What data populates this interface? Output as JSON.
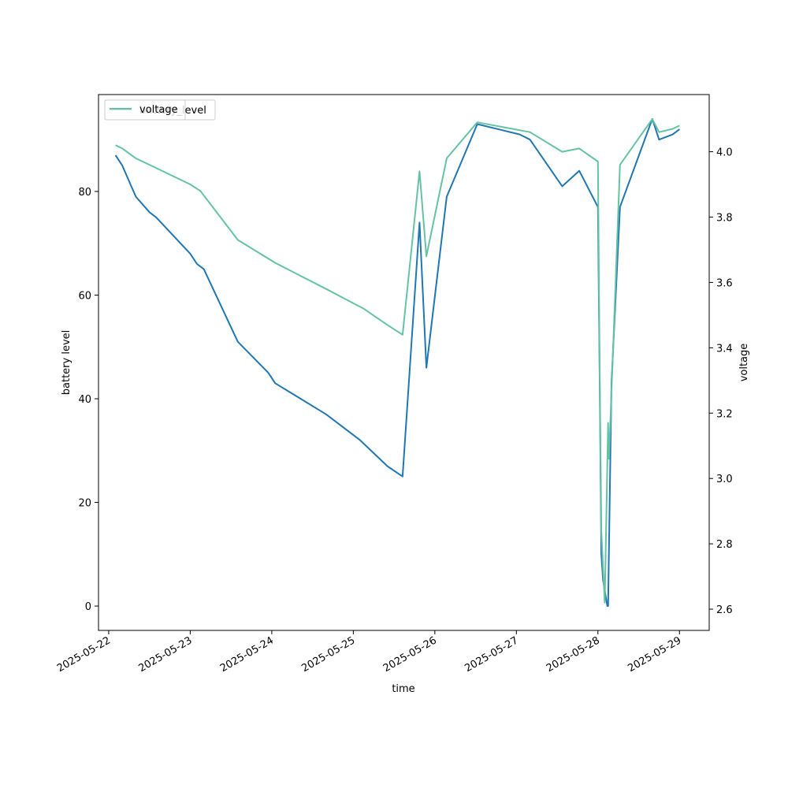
{
  "chart_data": {
    "type": "line",
    "xlabel": "time",
    "ylabel_left": "battery level",
    "ylabel_right": "voltage",
    "x_ticks": [
      "2025-05-22",
      "2025-05-23",
      "2025-05-24",
      "2025-05-25",
      "2025-05-26",
      "2025-05-27",
      "2025-05-28",
      "2025-05-29"
    ],
    "y_left_ticks": [
      0,
      20,
      40,
      60,
      80
    ],
    "y_right_ticks": [
      2.6,
      2.8,
      3.0,
      3.2,
      3.4,
      3.6,
      3.8,
      4.0
    ],
    "y_left_range": [
      -4.7,
      98.7
    ],
    "y_right_range": [
      2.535,
      4.175
    ],
    "x_range": [
      "2025-05-21 21:00",
      "2025-05-29 08:45"
    ],
    "grid": false,
    "legend": {
      "placement": "upper left",
      "entries_overlapping": [
        "battery_level",
        "voltage"
      ]
    },
    "colors": {
      "battery_level": "#1f77b4",
      "voltage": "#66c2a5"
    },
    "series": [
      {
        "name": "battery_level",
        "axis": "left",
        "points": [
          [
            "2025-05-22 02:00",
            87
          ],
          [
            "2025-05-22 04:00",
            85
          ],
          [
            "2025-05-22 08:00",
            79
          ],
          [
            "2025-05-22 12:00",
            76
          ],
          [
            "2025-05-22 14:00",
            75
          ],
          [
            "2025-05-23 00:00",
            68
          ],
          [
            "2025-05-23 02:00",
            66
          ],
          [
            "2025-05-23 04:00",
            65
          ],
          [
            "2025-05-23 14:00",
            51
          ],
          [
            "2025-05-23 17:00",
            49
          ],
          [
            "2025-05-23 23:00",
            45
          ],
          [
            "2025-05-24 01:00",
            43
          ],
          [
            "2025-05-24 06:00",
            41
          ],
          [
            "2025-05-24 16:00",
            37
          ],
          [
            "2025-05-25 02:00",
            32
          ],
          [
            "2025-05-25 10:00",
            27
          ],
          [
            "2025-05-25 14:30",
            25
          ],
          [
            "2025-05-25 19:30",
            74
          ],
          [
            "2025-05-25 21:30",
            46
          ],
          [
            "2025-05-26 03:30",
            79
          ],
          [
            "2025-05-26 12:30",
            93
          ],
          [
            "2025-05-27 01:00",
            91
          ],
          [
            "2025-05-27 04:00",
            90
          ],
          [
            "2025-05-27 13:30",
            81
          ],
          [
            "2025-05-27 18:30",
            84
          ],
          [
            "2025-05-28 00:00",
            77
          ],
          [
            "2025-05-28 00:30",
            44
          ],
          [
            "2025-05-28 01:00",
            10
          ],
          [
            "2025-05-28 01:30",
            5
          ],
          [
            "2025-05-28 02:45",
            0
          ],
          [
            "2025-05-28 03:00",
            0
          ],
          [
            "2025-05-28 04:00",
            43
          ],
          [
            "2025-05-28 06:30",
            77
          ],
          [
            "2025-05-28 16:00",
            94
          ],
          [
            "2025-05-28 18:00",
            90
          ],
          [
            "2025-05-28 22:00",
            91
          ],
          [
            "2025-05-29 00:00",
            92
          ]
        ]
      },
      {
        "name": "voltage",
        "axis": "right",
        "points": [
          [
            "2025-05-22 02:00",
            4.02
          ],
          [
            "2025-05-22 04:00",
            4.01
          ],
          [
            "2025-05-22 08:00",
            3.98
          ],
          [
            "2025-05-22 12:00",
            3.96
          ],
          [
            "2025-05-23 00:00",
            3.9
          ],
          [
            "2025-05-23 03:00",
            3.88
          ],
          [
            "2025-05-23 14:00",
            3.73
          ],
          [
            "2025-05-24 01:00",
            3.66
          ],
          [
            "2025-05-24 16:00",
            3.58
          ],
          [
            "2025-05-25 03:00",
            3.52
          ],
          [
            "2025-05-25 10:00",
            3.47
          ],
          [
            "2025-05-25 14:30",
            3.44
          ],
          [
            "2025-05-25 19:30",
            3.94
          ],
          [
            "2025-05-25 21:30",
            3.68
          ],
          [
            "2025-05-26 03:30",
            3.98
          ],
          [
            "2025-05-26 12:30",
            4.09
          ],
          [
            "2025-05-27 04:00",
            4.06
          ],
          [
            "2025-05-27 13:30",
            4.0
          ],
          [
            "2025-05-27 18:30",
            4.01
          ],
          [
            "2025-05-28 00:00",
            3.97
          ],
          [
            "2025-05-28 00:30",
            3.33
          ],
          [
            "2025-05-28 01:00",
            2.84
          ],
          [
            "2025-05-28 02:00",
            2.62
          ],
          [
            "2025-05-28 03:00",
            3.17
          ],
          [
            "2025-05-28 03:15",
            3.06
          ],
          [
            "2025-05-28 06:30",
            3.96
          ],
          [
            "2025-05-28 16:00",
            4.1
          ],
          [
            "2025-05-28 18:00",
            4.06
          ],
          [
            "2025-05-28 22:00",
            4.07
          ],
          [
            "2025-05-29 00:00",
            4.08
          ]
        ]
      }
    ]
  }
}
